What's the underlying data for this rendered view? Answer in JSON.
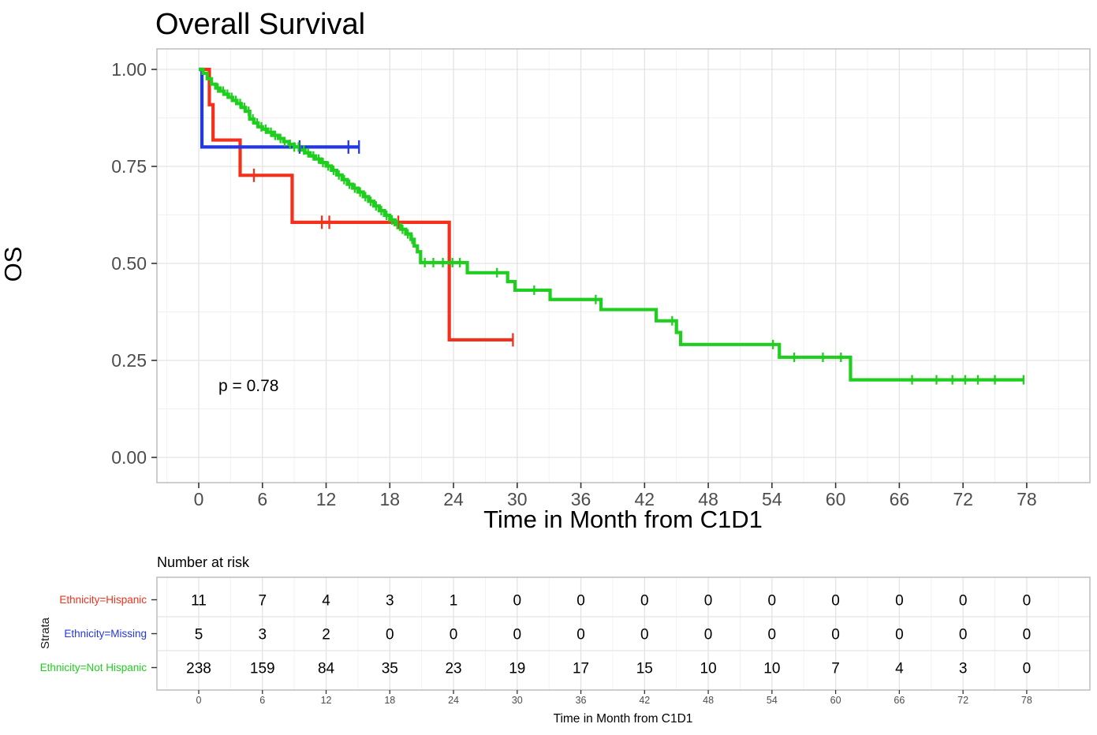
{
  "title": "Overall Survival",
  "main_plot": {
    "y_label": "OS",
    "x_label": "Time in Month from C1D1",
    "p_value_text": "p = 0.78"
  },
  "chart_data": {
    "type": "line",
    "subtype": "kaplan_meier_step",
    "title": "Overall Survival",
    "xlabel": "Time in Month from C1D1",
    "ylabel": "OS",
    "xlim": [
      0,
      78
    ],
    "ylim": [
      0,
      1
    ],
    "x_ticks": [
      0,
      6,
      12,
      18,
      24,
      30,
      36,
      42,
      48,
      54,
      60,
      66,
      72,
      78
    ],
    "y_ticks": [
      {
        "value": 1.0,
        "label": "1.00"
      },
      {
        "value": 0.75,
        "label": "0.75"
      },
      {
        "value": 0.5,
        "label": "0.50"
      },
      {
        "value": 0.25,
        "label": "0.25"
      },
      {
        "value": 0.0,
        "label": "0.00"
      }
    ],
    "grid": true,
    "legend_position": "none",
    "p_value": "p = 0.78",
    "series": [
      {
        "name": "Ethnicity=Hispanic",
        "color": "#F2301C",
        "steps": [
          [
            0,
            1.0
          ],
          [
            1.0,
            0.909
          ],
          [
            1.35,
            0.818
          ],
          [
            3.9,
            0.727
          ],
          [
            8.8,
            0.606
          ],
          [
            23.6,
            0.303
          ]
        ],
        "end_time": 29.6,
        "censor_times": [
          5.2,
          11.6,
          12.3,
          18.8,
          29.6
        ]
      },
      {
        "name": "Ethnicity=Missing",
        "color": "#2438E0",
        "steps": [
          [
            0,
            1.0
          ],
          [
            0.3,
            0.8
          ]
        ],
        "end_time": 15.1,
        "censor_times": [
          9.5,
          14.1,
          15.1
        ]
      },
      {
        "name": "Ethnicity=Not Hispanic",
        "color": "#1FCE1F",
        "steps": [
          [
            0,
            1.0
          ],
          [
            0.4,
            0.99
          ],
          [
            0.8,
            0.976
          ],
          [
            1.2,
            0.962
          ],
          [
            1.6,
            0.952
          ],
          [
            2,
            0.944
          ],
          [
            2.4,
            0.936
          ],
          [
            2.8,
            0.928
          ],
          [
            3.2,
            0.92
          ],
          [
            3.6,
            0.912
          ],
          [
            4,
            0.902
          ],
          [
            4.4,
            0.892
          ],
          [
            4.8,
            0.872
          ],
          [
            5.2,
            0.862
          ],
          [
            5.6,
            0.852
          ],
          [
            6,
            0.846
          ],
          [
            6.5,
            0.838
          ],
          [
            7,
            0.83
          ],
          [
            7.5,
            0.822
          ],
          [
            8,
            0.814
          ],
          [
            8.5,
            0.807
          ],
          [
            9,
            0.8
          ],
          [
            9.5,
            0.792
          ],
          [
            10,
            0.785
          ],
          [
            10.5,
            0.777
          ],
          [
            11,
            0.769
          ],
          [
            11.5,
            0.76
          ],
          [
            12,
            0.751
          ],
          [
            12.5,
            0.74
          ],
          [
            13,
            0.728
          ],
          [
            13.5,
            0.716
          ],
          [
            14,
            0.704
          ],
          [
            14.5,
            0.694
          ],
          [
            15,
            0.684
          ],
          [
            15.5,
            0.672
          ],
          [
            16,
            0.66
          ],
          [
            16.5,
            0.648
          ],
          [
            17,
            0.636
          ],
          [
            17.5,
            0.624
          ],
          [
            18,
            0.612
          ],
          [
            18.5,
            0.6
          ],
          [
            19,
            0.588
          ],
          [
            19.5,
            0.576
          ],
          [
            20,
            0.562
          ],
          [
            20.3,
            0.545
          ],
          [
            20.6,
            0.53
          ],
          [
            20.9,
            0.502
          ],
          [
            25.3,
            0.476
          ],
          [
            29.1,
            0.453
          ],
          [
            29.8,
            0.431
          ],
          [
            33.1,
            0.407
          ],
          [
            37.9,
            0.381
          ],
          [
            43.1,
            0.352
          ],
          [
            45,
            0.322
          ],
          [
            45.4,
            0.291
          ],
          [
            54.7,
            0.258
          ],
          [
            61.4,
            0.2
          ]
        ],
        "end_time": 77.7,
        "censor_times": [
          1.8,
          2.3,
          2.7,
          3.1,
          3.5,
          3.9,
          4.3,
          4.7,
          5.1,
          5.5,
          5.9,
          6.3,
          6.8,
          7.2,
          7.7,
          8.1,
          8.6,
          9.0,
          9.4,
          9.9,
          10.3,
          10.8,
          11.3,
          11.7,
          12.2,
          12.7,
          13.2,
          13.7,
          14.2,
          14.7,
          15.2,
          15.7,
          16.2,
          16.7,
          17.2,
          17.7,
          18.2,
          18.7,
          19.2,
          19.7,
          20.1,
          21.3,
          22.1,
          23.0,
          23.9,
          24.6,
          28.1,
          31.6,
          37.4,
          44.6,
          54.1,
          56.1,
          58.8,
          60.5,
          67.2,
          69.5,
          71.0,
          72.2,
          73.4,
          75.0,
          77.7
        ]
      }
    ]
  },
  "risk_table": {
    "title": "Number at risk",
    "y_label": "Strata",
    "x_label": "Time in Month from C1D1",
    "times": [
      0,
      6,
      12,
      18,
      24,
      30,
      36,
      42,
      48,
      54,
      60,
      66,
      72,
      78
    ],
    "rows": [
      {
        "label": "Ethnicity=Hispanic",
        "color": "#F2301C",
        "counts": [
          11,
          7,
          4,
          3,
          1,
          0,
          0,
          0,
          0,
          0,
          0,
          0,
          0,
          0
        ]
      },
      {
        "label": "Ethnicity=Missing",
        "color": "#2438E0",
        "counts": [
          5,
          3,
          2,
          0,
          0,
          0,
          0,
          0,
          0,
          0,
          0,
          0,
          0,
          0
        ]
      },
      {
        "label": "Ethnicity=Not Hispanic",
        "color": "#1FCE1F",
        "counts": [
          238,
          159,
          84,
          35,
          23,
          19,
          17,
          15,
          10,
          10,
          7,
          4,
          3,
          0
        ]
      }
    ]
  },
  "colors": {
    "grid_major": "#E3E3E3",
    "grid_minor": "#F1F1F1",
    "panel_border": "#BDBDBD",
    "tick_mark": "#333333",
    "tick_label": "#4D4D4D"
  }
}
